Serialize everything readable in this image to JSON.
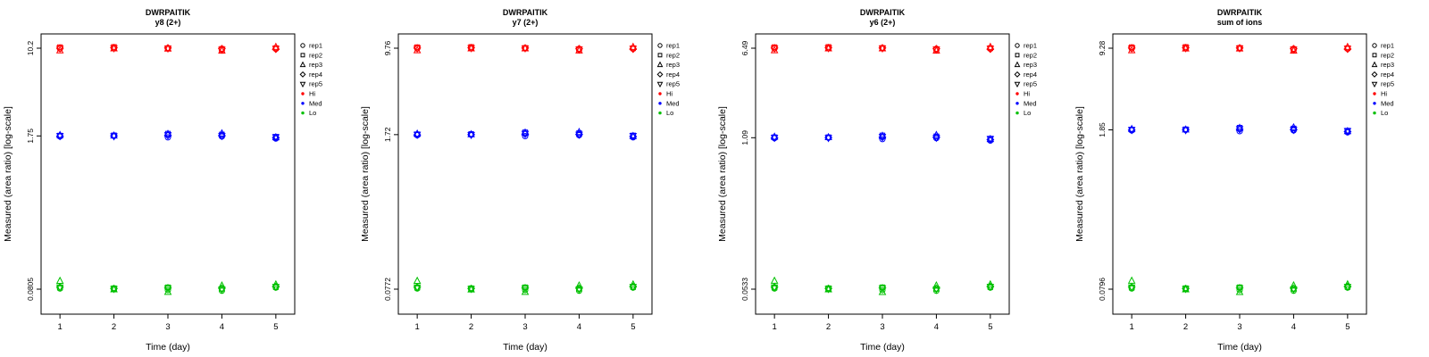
{
  "styles": {
    "colors": {
      "hi": "#ff0000",
      "med": "#0000ff",
      "lo": "#00c000"
    },
    "axis_color": "#000000",
    "background": "#ffffff"
  },
  "legend": {
    "reps": [
      {
        "name": "rep1",
        "symbol": "circle"
      },
      {
        "name": "rep2",
        "symbol": "square"
      },
      {
        "name": "rep3",
        "symbol": "triangle-up"
      },
      {
        "name": "rep4",
        "symbol": "diamond"
      },
      {
        "name": "rep5",
        "symbol": "triangle-down"
      }
    ],
    "levels": [
      {
        "name": "Hi",
        "color_key": "hi"
      },
      {
        "name": "Med",
        "color_key": "med"
      },
      {
        "name": "Lo",
        "color_key": "lo"
      }
    ]
  },
  "chart_data": [
    {
      "type": "scatter",
      "title": "DWRPAITIK",
      "subtitle": "y8 (2+)",
      "xlabel": "Time (day)",
      "ylabel": "Measured (area ratio) [log-scale]",
      "y_scale": "log",
      "x_ticks": [
        1,
        2,
        3,
        4,
        5
      ],
      "y_ticks": [
        10.2,
        1.75,
        0.0805
      ],
      "y_tick_labels": [
        "10.2",
        "1.75",
        "0.0805"
      ],
      "days": [
        1,
        2,
        3,
        4,
        5
      ],
      "series": [
        {
          "level": "Hi",
          "color_key": "hi",
          "reps": [
            {
              "name": "rep1",
              "values": [
                10.1,
                10.2,
                10.2,
                9.85,
                10.1
              ]
            },
            {
              "name": "rep2",
              "values": [
                10.4,
                10.45,
                10.2,
                10.05,
                10.2
              ]
            },
            {
              "name": "rep3",
              "values": [
                9.75,
                10.15,
                10.1,
                9.7,
                10.45
              ]
            },
            {
              "name": "rep4",
              "values": [
                10.2,
                10.3,
                10.25,
                10.1,
                10.0
              ]
            },
            {
              "name": "rep5",
              "values": [
                10.15,
                10.2,
                10.15,
                9.9,
                10.1
              ]
            }
          ]
        },
        {
          "level": "Med",
          "color_key": "med",
          "reps": [
            {
              "name": "rep1",
              "values": [
                1.73,
                1.75,
                1.7,
                1.73,
                1.66
              ]
            },
            {
              "name": "rep2",
              "values": [
                1.76,
                1.77,
                1.83,
                1.8,
                1.72
              ]
            },
            {
              "name": "rep3",
              "values": [
                1.78,
                1.76,
                1.82,
                1.84,
                1.7
              ]
            },
            {
              "name": "rep4",
              "values": [
                1.74,
                1.75,
                1.77,
                1.76,
                1.69
              ]
            },
            {
              "name": "rep5",
              "values": [
                1.75,
                1.74,
                1.78,
                1.75,
                1.71
              ]
            }
          ]
        },
        {
          "level": "Lo",
          "color_key": "lo",
          "reps": [
            {
              "name": "rep1",
              "values": [
                0.0815,
                0.0805,
                0.079,
                0.078,
                0.083
              ]
            },
            {
              "name": "rep2",
              "values": [
                0.083,
                0.082,
                0.0835,
                0.081,
                0.084
              ]
            },
            {
              "name": "rep3",
              "values": [
                0.095,
                0.08,
                0.076,
                0.0865,
                0.0885
              ]
            },
            {
              "name": "rep4",
              "values": [
                0.084,
                0.0815,
                0.0825,
                0.082,
                0.085
              ]
            },
            {
              "name": "rep5",
              "values": [
                0.0835,
                0.081,
                0.082,
                0.08,
                0.0845
              ]
            }
          ]
        }
      ]
    },
    {
      "type": "scatter",
      "title": "DWRPAITIK",
      "subtitle": "y7 (2+)",
      "xlabel": "Time (day)",
      "ylabel": "Measured (area ratio) [log-scale]",
      "y_scale": "log",
      "x_ticks": [
        1,
        2,
        3,
        4,
        5
      ],
      "y_ticks": [
        9.76,
        1.72,
        0.0772
      ],
      "y_tick_labels": [
        "9.76",
        "1.72",
        "0.0772"
      ],
      "days": [
        1,
        2,
        3,
        4,
        5
      ],
      "series": [
        {
          "level": "Hi",
          "color_key": "hi",
          "reps": [
            {
              "name": "rep1",
              "values": [
                9.7,
                9.75,
                9.8,
                9.45,
                9.7
              ]
            },
            {
              "name": "rep2",
              "values": [
                9.95,
                10.0,
                9.8,
                9.6,
                9.75
              ]
            },
            {
              "name": "rep3",
              "values": [
                9.35,
                9.7,
                9.7,
                9.3,
                10.0
              ]
            },
            {
              "name": "rep4",
              "values": [
                9.8,
                9.85,
                9.8,
                9.65,
                9.6
              ]
            },
            {
              "name": "rep5",
              "values": [
                9.72,
                9.78,
                9.75,
                9.5,
                9.68
              ]
            }
          ]
        },
        {
          "level": "Med",
          "color_key": "med",
          "reps": [
            {
              "name": "rep1",
              "values": [
                1.7,
                1.72,
                1.67,
                1.7,
                1.63
              ]
            },
            {
              "name": "rep2",
              "values": [
                1.73,
                1.74,
                1.8,
                1.77,
                1.69
              ]
            },
            {
              "name": "rep3",
              "values": [
                1.75,
                1.73,
                1.79,
                1.81,
                1.67
              ]
            },
            {
              "name": "rep4",
              "values": [
                1.71,
                1.72,
                1.74,
                1.73,
                1.66
              ]
            },
            {
              "name": "rep5",
              "values": [
                1.72,
                1.71,
                1.75,
                1.72,
                1.68
              ]
            }
          ]
        },
        {
          "level": "Lo",
          "color_key": "lo",
          "reps": [
            {
              "name": "rep1",
              "values": [
                0.0782,
                0.0772,
                0.0758,
                0.0748,
                0.0796
              ]
            },
            {
              "name": "rep2",
              "values": [
                0.0796,
                0.0786,
                0.0801,
                0.0777,
                0.0806
              ]
            },
            {
              "name": "rep3",
              "values": [
                0.0911,
                0.0767,
                0.0729,
                0.083,
                0.0849
              ]
            },
            {
              "name": "rep4",
              "values": [
                0.0806,
                0.0782,
                0.0791,
                0.0786,
                0.0815
              ]
            },
            {
              "name": "rep5",
              "values": [
                0.0801,
                0.0777,
                0.0786,
                0.0767,
                0.081
              ]
            }
          ]
        }
      ]
    },
    {
      "type": "scatter",
      "title": "DWRPAITIK",
      "subtitle": "y6 (2+)",
      "xlabel": "Time (day)",
      "ylabel": "Measured (area ratio) [log-scale]",
      "y_scale": "log",
      "x_ticks": [
        1,
        2,
        3,
        4,
        5
      ],
      "y_ticks": [
        6.49,
        1.09,
        0.0533
      ],
      "y_tick_labels": [
        "6.49",
        "1.09",
        "0.0533"
      ],
      "days": [
        1,
        2,
        3,
        4,
        5
      ],
      "series": [
        {
          "level": "Hi",
          "color_key": "hi",
          "reps": [
            {
              "name": "rep1",
              "values": [
                6.45,
                6.48,
                6.52,
                6.28,
                6.45
              ]
            },
            {
              "name": "rep2",
              "values": [
                6.62,
                6.65,
                6.52,
                6.38,
                6.49
              ]
            },
            {
              "name": "rep3",
              "values": [
                6.22,
                6.45,
                6.45,
                6.18,
                6.65
              ]
            },
            {
              "name": "rep4",
              "values": [
                6.52,
                6.55,
                6.52,
                6.42,
                6.38
              ]
            },
            {
              "name": "rep5",
              "values": [
                6.46,
                6.5,
                6.48,
                6.32,
                6.44
              ]
            }
          ]
        },
        {
          "level": "Med",
          "color_key": "med",
          "reps": [
            {
              "name": "rep1",
              "values": [
                1.08,
                1.09,
                1.06,
                1.08,
                1.03
              ]
            },
            {
              "name": "rep2",
              "values": [
                1.1,
                1.1,
                1.14,
                1.12,
                1.07
              ]
            },
            {
              "name": "rep3",
              "values": [
                1.11,
                1.1,
                1.13,
                1.15,
                1.06
              ]
            },
            {
              "name": "rep4",
              "values": [
                1.085,
                1.09,
                1.1,
                1.1,
                1.05
              ]
            },
            {
              "name": "rep5",
              "values": [
                1.09,
                1.085,
                1.11,
                1.09,
                1.065
              ]
            }
          ]
        },
        {
          "level": "Lo",
          "color_key": "lo",
          "reps": [
            {
              "name": "rep1",
              "values": [
                0.054,
                0.0533,
                0.0523,
                0.0516,
                0.055
              ]
            },
            {
              "name": "rep2",
              "values": [
                0.055,
                0.0543,
                0.0553,
                0.0536,
                0.0556
              ]
            },
            {
              "name": "rep3",
              "values": [
                0.0629,
                0.053,
                0.0503,
                0.0573,
                0.0586
              ]
            },
            {
              "name": "rep4",
              "values": [
                0.0556,
                0.054,
                0.0546,
                0.0543,
                0.0563
              ]
            },
            {
              "name": "rep5",
              "values": [
                0.0553,
                0.0536,
                0.0543,
                0.053,
                0.056
              ]
            }
          ]
        }
      ]
    },
    {
      "type": "scatter",
      "title": "DWRPAITIK",
      "subtitle": "sum of ions",
      "xlabel": "Time (day)",
      "ylabel": "Measured (area ratio) [log-scale]",
      "y_scale": "log",
      "x_ticks": [
        1,
        2,
        3,
        4,
        5
      ],
      "y_ticks": [
        9.28,
        1.85,
        0.0796
      ],
      "y_tick_labels": [
        "9.28",
        "1.85",
        "0.0796"
      ],
      "days": [
        1,
        2,
        3,
        4,
        5
      ],
      "series": [
        {
          "level": "Hi",
          "color_key": "hi",
          "reps": [
            {
              "name": "rep1",
              "values": [
                9.22,
                9.27,
                9.32,
                8.98,
                9.22
              ]
            },
            {
              "name": "rep2",
              "values": [
                9.46,
                9.5,
                9.32,
                9.13,
                9.27
              ]
            },
            {
              "name": "rep3",
              "values": [
                8.89,
                9.22,
                9.22,
                8.84,
                9.5
              ]
            },
            {
              "name": "rep4",
              "values": [
                9.32,
                9.37,
                9.32,
                9.18,
                9.13
              ]
            },
            {
              "name": "rep5",
              "values": [
                9.24,
                9.3,
                9.27,
                9.03,
                9.2
              ]
            }
          ]
        },
        {
          "level": "Med",
          "color_key": "med",
          "reps": [
            {
              "name": "rep1",
              "values": [
                1.83,
                1.85,
                1.8,
                1.83,
                1.76
              ]
            },
            {
              "name": "rep2",
              "values": [
                1.86,
                1.87,
                1.93,
                1.9,
                1.82
              ]
            },
            {
              "name": "rep3",
              "values": [
                1.88,
                1.86,
                1.92,
                1.94,
                1.8
              ]
            },
            {
              "name": "rep4",
              "values": [
                1.84,
                1.85,
                1.87,
                1.86,
                1.79
              ]
            },
            {
              "name": "rep5",
              "values": [
                1.85,
                1.84,
                1.88,
                1.85,
                1.81
              ]
            }
          ]
        },
        {
          "level": "Lo",
          "color_key": "lo",
          "reps": [
            {
              "name": "rep1",
              "values": [
                0.0806,
                0.0796,
                0.0781,
                0.0771,
                0.0821
              ]
            },
            {
              "name": "rep2",
              "values": [
                0.0821,
                0.0811,
                0.0826,
                0.0801,
                0.0831
              ]
            },
            {
              "name": "rep3",
              "values": [
                0.0939,
                0.0791,
                0.0751,
                0.0856,
                0.0875
              ]
            },
            {
              "name": "rep4",
              "values": [
                0.0831,
                0.0806,
                0.0816,
                0.0811,
                0.0841
              ]
            },
            {
              "name": "rep5",
              "values": [
                0.0826,
                0.0801,
                0.0811,
                0.0791,
                0.0836
              ]
            }
          ]
        }
      ]
    }
  ]
}
